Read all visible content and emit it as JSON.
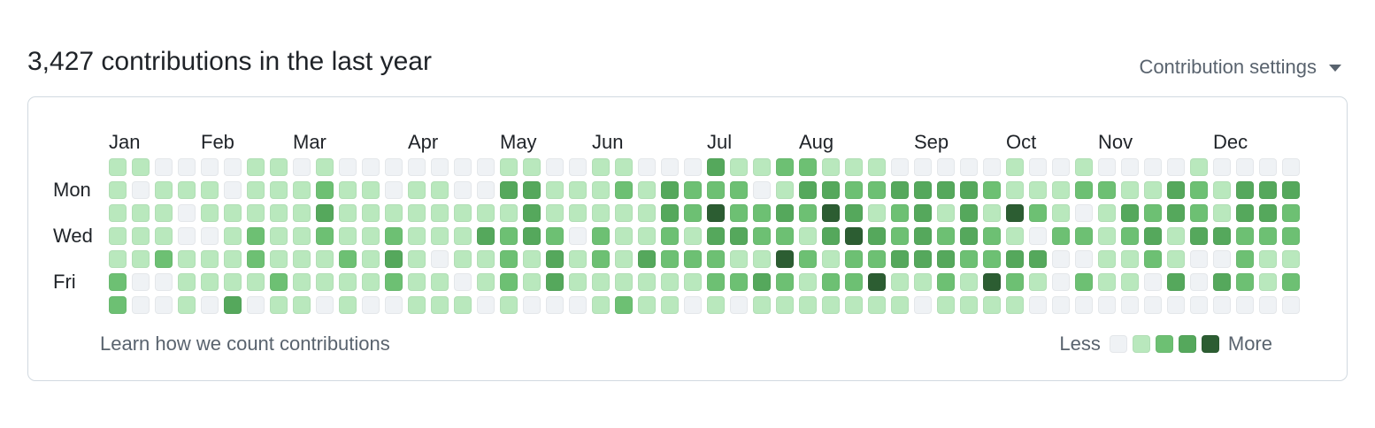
{
  "header": {
    "title": "3,427 contributions in the last year",
    "settings_label": "Contribution settings",
    "settings_icon": "triangle-down-icon"
  },
  "graph": {
    "months": [
      {
        "label": "Jan",
        "col": 0
      },
      {
        "label": "Feb",
        "col": 4
      },
      {
        "label": "Mar",
        "col": 8
      },
      {
        "label": "Apr",
        "col": 13
      },
      {
        "label": "May",
        "col": 17
      },
      {
        "label": "Jun",
        "col": 21
      },
      {
        "label": "Jul",
        "col": 26
      },
      {
        "label": "Aug",
        "col": 30
      },
      {
        "label": "Sep",
        "col": 35
      },
      {
        "label": "Oct",
        "col": 39
      },
      {
        "label": "Nov",
        "col": 43
      },
      {
        "label": "Dec",
        "col": 48
      }
    ],
    "day_labels": [
      {
        "label": "Mon",
        "row": 1
      },
      {
        "label": "Wed",
        "row": 3
      },
      {
        "label": "Fri",
        "row": 5
      }
    ],
    "colors": [
      "#eff2f5",
      "#b9e8bd",
      "#6dc073",
      "#55a85c",
      "#2c5d32"
    ],
    "levels": [
      "1100001101000000011001100031122111000001001000010000",
      "1011101112110110033111213222013322333321112211321333",
      "1110111113111111113111113242232431231314210132321332",
      "1110012112112111323202112133221343232321022123133222",
      "1121112111213101121312132221142122333223300112100211",
      "2001111211112110121311111122321224112142102110303212",
      "2001030110100111010001211010111111101111000000000000"
    ]
  },
  "footer": {
    "learn_link": "Learn how we count contributions",
    "legend_less": "Less",
    "legend_more": "More",
    "legend_levels": [
      0,
      1,
      2,
      3,
      4
    ]
  }
}
